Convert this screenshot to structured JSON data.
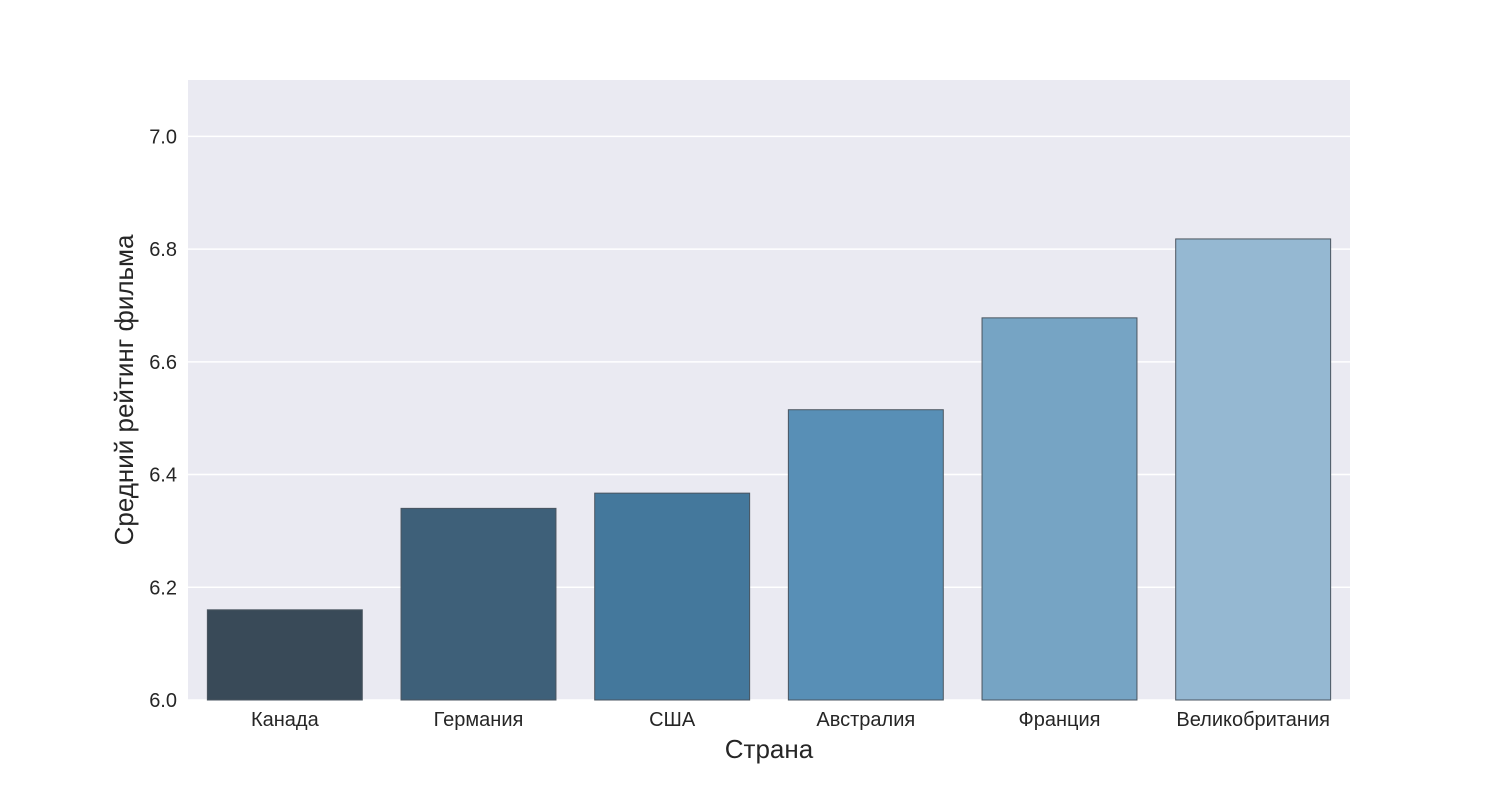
{
  "chart_data": {
    "type": "bar",
    "title": "",
    "xlabel": "Страна",
    "ylabel": "Средний рейтинг фильма",
    "categories": [
      "Канада",
      "Германия",
      "США",
      "Австралия",
      "Франция",
      "Великобритания"
    ],
    "values": [
      6.16,
      6.34,
      6.367,
      6.515,
      6.678,
      6.818
    ],
    "ylim": [
      6.0,
      7.1
    ],
    "yticks": [
      6.0,
      6.2,
      6.4,
      6.6,
      6.8,
      7.0
    ],
    "ytick_labels": [
      "6.0",
      "6.2",
      "6.4",
      "6.6",
      "6.8",
      "7.0"
    ],
    "grid": true,
    "colors": {
      "background": "#eaeaf2",
      "grid": "#ffffff",
      "bars": [
        "#394a58",
        "#3e6079",
        "#44789c",
        "#588fb6",
        "#76a4c4",
        "#95b8d2"
      ]
    }
  }
}
